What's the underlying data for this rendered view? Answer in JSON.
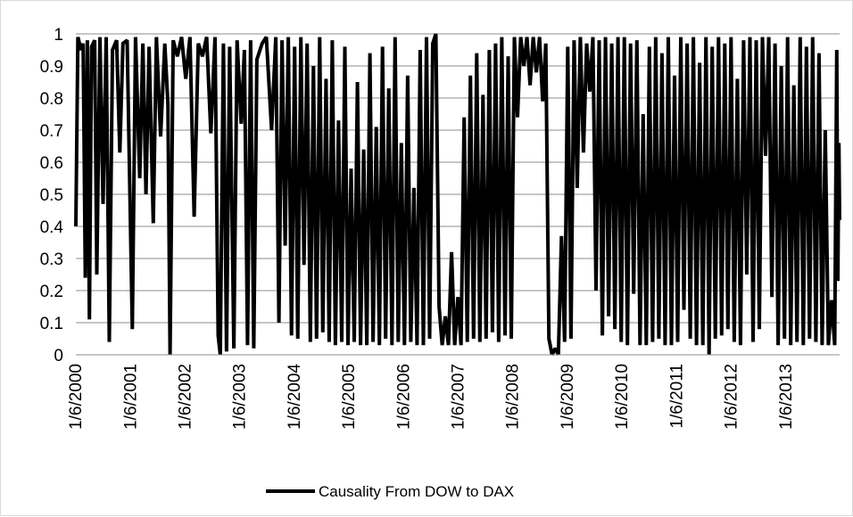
{
  "chart_data": {
    "type": "line",
    "title": "",
    "xlabel": "",
    "ylabel": "",
    "ylim": [
      0,
      1
    ],
    "y_ticks": [
      "0",
      "0.1",
      "0.2",
      "0.3",
      "0.4",
      "0.5",
      "0.6",
      "0.7",
      "0.8",
      "0.9",
      "1"
    ],
    "x_range": [
      "2000-01-06",
      "2013-12-31"
    ],
    "x_ticks": [
      "1/6/2000",
      "1/6/2001",
      "1/6/2002",
      "1/6/2003",
      "1/6/2004",
      "1/6/2005",
      "1/6/2006",
      "1/6/2007",
      "1/6/2008",
      "1/6/2009",
      "1/6/2010",
      "1/6/2011",
      "1/6/2012",
      "1/6/2013"
    ],
    "grid": "horizontal",
    "legend_position": "bottom",
    "series": [
      {
        "name": "Causality  From DOW to DAX",
        "color": "#000000",
        "points": [
          [
            "2000-01-06",
            0.4
          ],
          [
            "2000-01-20",
            0.99
          ],
          [
            "2000-02-10",
            0.95
          ],
          [
            "2000-02-24",
            0.97
          ],
          [
            "2000-03-09",
            0.24
          ],
          [
            "2000-03-23",
            0.98
          ],
          [
            "2000-04-06",
            0.11
          ],
          [
            "2000-04-20",
            0.96
          ],
          [
            "2000-05-11",
            0.98
          ],
          [
            "2000-05-25",
            0.25
          ],
          [
            "2000-06-15",
            0.99
          ],
          [
            "2000-07-06",
            0.47
          ],
          [
            "2000-07-27",
            0.99
          ],
          [
            "2000-08-17",
            0.04
          ],
          [
            "2000-09-07",
            0.95
          ],
          [
            "2000-10-05",
            0.98
          ],
          [
            "2000-10-26",
            0.63
          ],
          [
            "2000-11-16",
            0.97
          ],
          [
            "2000-12-14",
            0.98
          ],
          [
            "2001-01-18",
            0.08
          ],
          [
            "2001-02-08",
            0.99
          ],
          [
            "2001-03-08",
            0.55
          ],
          [
            "2001-03-29",
            0.97
          ],
          [
            "2001-04-19",
            0.5
          ],
          [
            "2001-05-10",
            0.96
          ],
          [
            "2001-06-07",
            0.41
          ],
          [
            "2001-06-28",
            0.99
          ],
          [
            "2001-07-26",
            0.68
          ],
          [
            "2001-08-23",
            0.97
          ],
          [
            "2001-09-13",
            0.78
          ],
          [
            "2001-09-27",
            0.0
          ],
          [
            "2001-10-18",
            0.98
          ],
          [
            "2001-11-15",
            0.93
          ],
          [
            "2001-12-13",
            0.99
          ],
          [
            "2002-01-10",
            0.86
          ],
          [
            "2002-02-07",
            0.99
          ],
          [
            "2002-03-07",
            0.43
          ],
          [
            "2002-04-04",
            0.97
          ],
          [
            "2002-05-02",
            0.93
          ],
          [
            "2002-05-30",
            0.99
          ],
          [
            "2002-06-27",
            0.69
          ],
          [
            "2002-07-25",
            0.99
          ],
          [
            "2002-08-15",
            0.06
          ],
          [
            "2002-08-29",
            0.0
          ],
          [
            "2002-09-19",
            0.97
          ],
          [
            "2002-10-10",
            0.01
          ],
          [
            "2002-10-31",
            0.96
          ],
          [
            "2002-11-28",
            0.02
          ],
          [
            "2002-12-19",
            0.98
          ],
          [
            "2003-01-16",
            0.72
          ],
          [
            "2003-02-06",
            0.95
          ],
          [
            "2003-02-27",
            0.03
          ],
          [
            "2003-03-20",
            0.98
          ],
          [
            "2003-04-10",
            0.02
          ],
          [
            "2003-05-01",
            0.92
          ],
          [
            "2003-06-05",
            0.97
          ],
          [
            "2003-07-03",
            0.99
          ],
          [
            "2003-08-07",
            0.7
          ],
          [
            "2003-09-04",
            0.99
          ],
          [
            "2003-09-25",
            0.1
          ],
          [
            "2003-10-16",
            0.98
          ],
          [
            "2003-11-06",
            0.34
          ],
          [
            "2003-11-27",
            0.99
          ],
          [
            "2003-12-18",
            0.06
          ],
          [
            "2004-01-08",
            0.96
          ],
          [
            "2004-01-29",
            0.05
          ],
          [
            "2004-02-19",
            0.99
          ],
          [
            "2004-03-11",
            0.28
          ],
          [
            "2004-04-01",
            0.97
          ],
          [
            "2004-04-22",
            0.04
          ],
          [
            "2004-05-13",
            0.9
          ],
          [
            "2004-06-03",
            0.05
          ],
          [
            "2004-06-24",
            0.99
          ],
          [
            "2004-07-15",
            0.07
          ],
          [
            "2004-08-05",
            0.86
          ],
          [
            "2004-08-26",
            0.04
          ],
          [
            "2004-09-16",
            0.98
          ],
          [
            "2004-10-07",
            0.03
          ],
          [
            "2004-10-28",
            0.73
          ],
          [
            "2004-11-18",
            0.04
          ],
          [
            "2004-12-09",
            0.96
          ],
          [
            "2004-12-30",
            0.03
          ],
          [
            "2005-01-20",
            0.58
          ],
          [
            "2005-02-10",
            0.04
          ],
          [
            "2005-03-03",
            0.85
          ],
          [
            "2005-03-24",
            0.03
          ],
          [
            "2005-04-14",
            0.64
          ],
          [
            "2005-05-05",
            0.03
          ],
          [
            "2005-05-26",
            0.94
          ],
          [
            "2005-06-16",
            0.04
          ],
          [
            "2005-07-07",
            0.71
          ],
          [
            "2005-07-28",
            0.03
          ],
          [
            "2005-08-18",
            0.96
          ],
          [
            "2005-09-08",
            0.05
          ],
          [
            "2005-09-29",
            0.83
          ],
          [
            "2005-10-20",
            0.03
          ],
          [
            "2005-11-10",
            0.99
          ],
          [
            "2005-12-01",
            0.04
          ],
          [
            "2005-12-22",
            0.66
          ],
          [
            "2006-01-12",
            0.03
          ],
          [
            "2006-02-02",
            0.87
          ],
          [
            "2006-02-23",
            0.04
          ],
          [
            "2006-03-16",
            0.52
          ],
          [
            "2006-04-06",
            0.03
          ],
          [
            "2006-04-27",
            0.95
          ],
          [
            "2006-05-18",
            0.03
          ],
          [
            "2006-06-08",
            0.99
          ],
          [
            "2006-06-29",
            0.05
          ],
          [
            "2006-07-20",
            0.97
          ],
          [
            "2006-08-10",
            1.0
          ],
          [
            "2006-08-31",
            0.15
          ],
          [
            "2006-09-21",
            0.03
          ],
          [
            "2006-10-12",
            0.12
          ],
          [
            "2006-11-02",
            0.03
          ],
          [
            "2006-11-23",
            0.32
          ],
          [
            "2006-12-14",
            0.03
          ],
          [
            "2007-01-04",
            0.18
          ],
          [
            "2007-01-25",
            0.03
          ],
          [
            "2007-02-15",
            0.74
          ],
          [
            "2007-03-08",
            0.04
          ],
          [
            "2007-03-29",
            0.87
          ],
          [
            "2007-04-19",
            0.05
          ],
          [
            "2007-05-10",
            0.94
          ],
          [
            "2007-05-31",
            0.04
          ],
          [
            "2007-06-21",
            0.81
          ],
          [
            "2007-07-12",
            0.05
          ],
          [
            "2007-08-02",
            0.95
          ],
          [
            "2007-08-23",
            0.07
          ],
          [
            "2007-09-13",
            0.97
          ],
          [
            "2007-10-04",
            0.04
          ],
          [
            "2007-10-25",
            0.99
          ],
          [
            "2007-11-15",
            0.06
          ],
          [
            "2007-12-06",
            0.93
          ],
          [
            "2007-12-27",
            0.05
          ],
          [
            "2008-01-17",
            0.99
          ],
          [
            "2008-02-07",
            0.74
          ],
          [
            "2008-02-28",
            0.99
          ],
          [
            "2008-03-20",
            0.9
          ],
          [
            "2008-04-10",
            0.99
          ],
          [
            "2008-05-01",
            0.84
          ],
          [
            "2008-05-22",
            0.99
          ],
          [
            "2008-06-12",
            0.88
          ],
          [
            "2008-07-03",
            0.99
          ],
          [
            "2008-07-24",
            0.79
          ],
          [
            "2008-08-14",
            0.97
          ],
          [
            "2008-09-04",
            0.05
          ],
          [
            "2008-09-25",
            0.0
          ],
          [
            "2008-10-16",
            0.02
          ],
          [
            "2008-11-06",
            0.0
          ],
          [
            "2008-11-27",
            0.37
          ],
          [
            "2008-12-18",
            0.04
          ],
          [
            "2009-01-08",
            0.96
          ],
          [
            "2009-01-29",
            0.05
          ],
          [
            "2009-02-19",
            0.98
          ],
          [
            "2009-03-12",
            0.52
          ],
          [
            "2009-04-02",
            0.99
          ],
          [
            "2009-04-23",
            0.63
          ],
          [
            "2009-05-14",
            0.97
          ],
          [
            "2009-06-04",
            0.82
          ],
          [
            "2009-06-25",
            0.99
          ],
          [
            "2009-07-16",
            0.2
          ],
          [
            "2009-08-06",
            0.98
          ],
          [
            "2009-08-27",
            0.06
          ],
          [
            "2009-09-17",
            0.99
          ],
          [
            "2009-10-08",
            0.12
          ],
          [
            "2009-10-29",
            0.97
          ],
          [
            "2009-11-19",
            0.08
          ],
          [
            "2009-12-10",
            0.99
          ],
          [
            "2009-12-31",
            0.04
          ],
          [
            "2010-01-21",
            0.99
          ],
          [
            "2010-02-11",
            0.03
          ],
          [
            "2010-03-04",
            0.97
          ],
          [
            "2010-03-25",
            0.19
          ],
          [
            "2010-04-15",
            0.98
          ],
          [
            "2010-05-06",
            0.03
          ],
          [
            "2010-05-27",
            0.75
          ],
          [
            "2010-06-17",
            0.03
          ],
          [
            "2010-07-08",
            0.96
          ],
          [
            "2010-07-29",
            0.04
          ],
          [
            "2010-08-19",
            0.99
          ],
          [
            "2010-09-09",
            0.05
          ],
          [
            "2010-09-30",
            0.94
          ],
          [
            "2010-10-21",
            0.03
          ],
          [
            "2010-11-11",
            0.99
          ],
          [
            "2010-12-02",
            0.03
          ],
          [
            "2010-12-23",
            0.87
          ],
          [
            "2011-01-13",
            0.04
          ],
          [
            "2011-02-03",
            0.99
          ],
          [
            "2011-02-24",
            0.14
          ],
          [
            "2011-03-17",
            0.97
          ],
          [
            "2011-04-07",
            0.05
          ],
          [
            "2011-04-28",
            0.99
          ],
          [
            "2011-05-19",
            0.03
          ],
          [
            "2011-06-09",
            0.91
          ],
          [
            "2011-06-30",
            0.03
          ],
          [
            "2011-07-21",
            0.99
          ],
          [
            "2011-08-11",
            0.0
          ],
          [
            "2011-09-01",
            0.96
          ],
          [
            "2011-09-22",
            0.05
          ],
          [
            "2011-10-13",
            0.99
          ],
          [
            "2011-11-03",
            0.06
          ],
          [
            "2011-11-24",
            0.97
          ],
          [
            "2011-12-15",
            0.08
          ],
          [
            "2012-01-05",
            0.99
          ],
          [
            "2012-01-26",
            0.04
          ],
          [
            "2012-02-16",
            0.86
          ],
          [
            "2012-03-08",
            0.03
          ],
          [
            "2012-03-29",
            0.98
          ],
          [
            "2012-04-19",
            0.25
          ],
          [
            "2012-05-10",
            0.99
          ],
          [
            "2012-05-31",
            0.04
          ],
          [
            "2012-06-21",
            0.98
          ],
          [
            "2012-07-12",
            0.08
          ],
          [
            "2012-08-02",
            0.99
          ],
          [
            "2012-08-23",
            0.62
          ],
          [
            "2012-09-13",
            0.99
          ],
          [
            "2012-10-04",
            0.18
          ],
          [
            "2012-10-25",
            0.97
          ],
          [
            "2012-11-15",
            0.03
          ],
          [
            "2012-12-06",
            0.9
          ],
          [
            "2012-12-27",
            0.05
          ],
          [
            "2013-01-17",
            0.99
          ],
          [
            "2013-02-07",
            0.03
          ],
          [
            "2013-02-28",
            0.84
          ],
          [
            "2013-03-21",
            0.04
          ],
          [
            "2013-04-11",
            0.99
          ],
          [
            "2013-05-02",
            0.03
          ],
          [
            "2013-05-23",
            0.96
          ],
          [
            "2013-06-13",
            0.05
          ],
          [
            "2013-07-04",
            0.99
          ],
          [
            "2013-07-25",
            0.04
          ],
          [
            "2013-08-15",
            0.94
          ],
          [
            "2013-09-05",
            0.03
          ],
          [
            "2013-09-26",
            0.7
          ],
          [
            "2013-10-17",
            0.03
          ],
          [
            "2013-11-07",
            0.17
          ],
          [
            "2013-11-28",
            0.03
          ],
          [
            "2013-12-12",
            0.95
          ],
          [
            "2013-12-19",
            0.23
          ],
          [
            "2013-12-26",
            0.66
          ],
          [
            "2013-12-31",
            0.42
          ]
        ]
      }
    ]
  }
}
